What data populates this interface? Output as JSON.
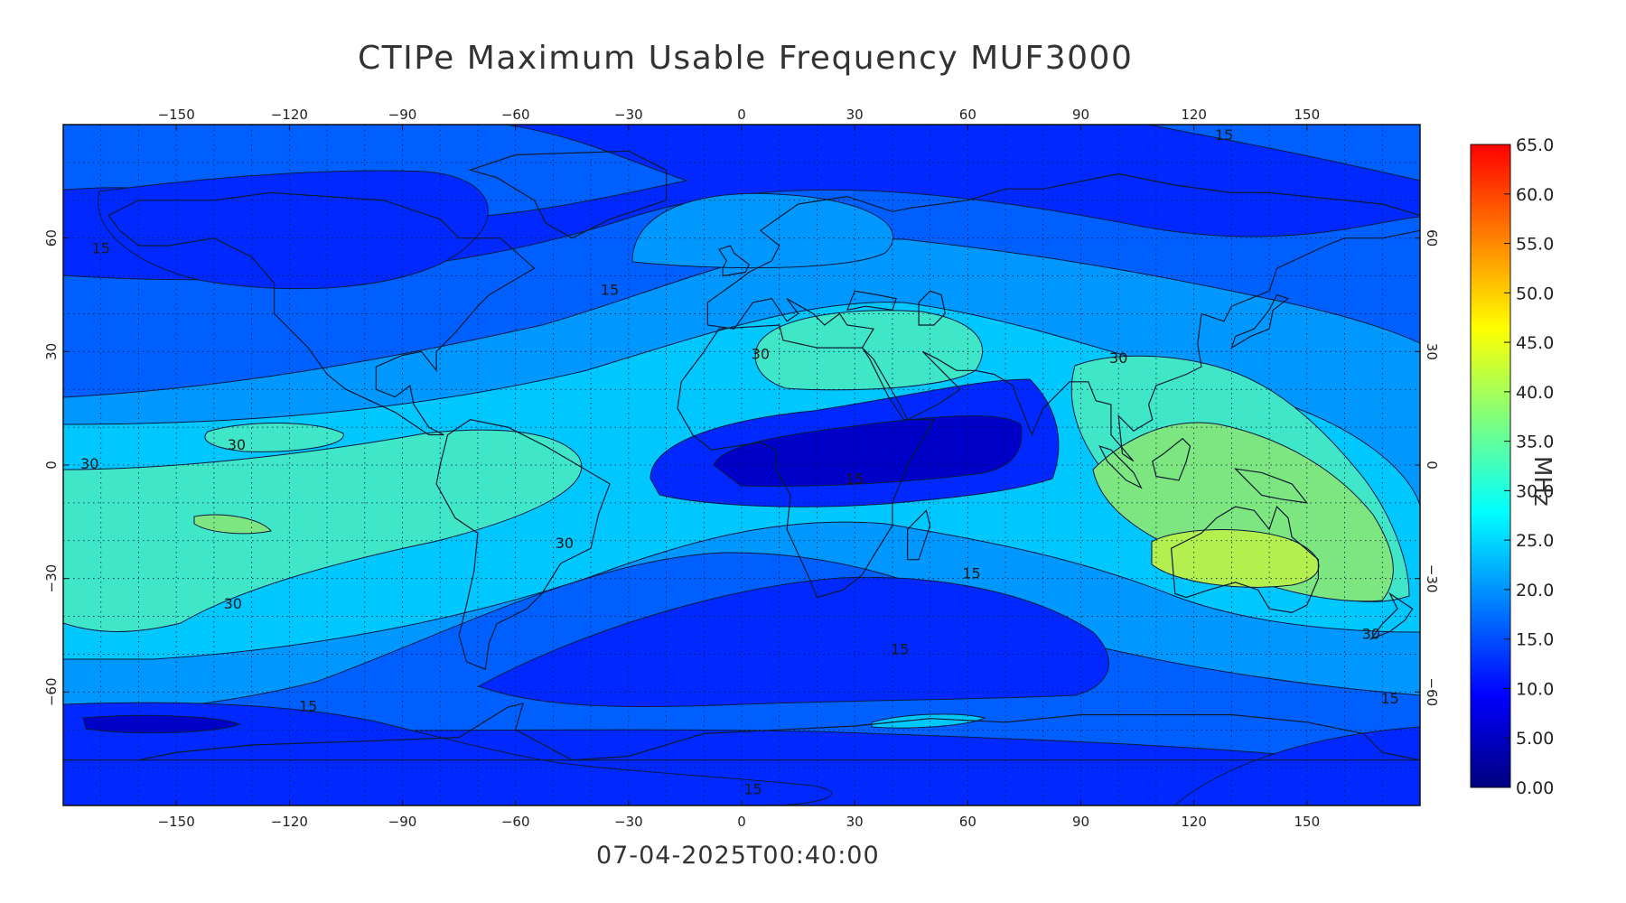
{
  "title": "CTIPe Maximum Usable Frequency MUF3000",
  "timestamp": "07-04-2025T00:40:00",
  "map": {
    "lon_ticks": [
      -150,
      -120,
      -90,
      -60,
      -30,
      0,
      30,
      60,
      90,
      120,
      150
    ],
    "lat_ticks": [
      -60,
      -30,
      0,
      30,
      60
    ],
    "lon_range": [
      -180,
      180
    ],
    "lat_range": [
      -90,
      90
    ],
    "grid": true,
    "contour_labels": [
      {
        "text": "15",
        "lon": -170,
        "lat": 56
      },
      {
        "text": "15",
        "lon": -35,
        "lat": 45
      },
      {
        "text": "15",
        "lon": 128,
        "lat": 86
      },
      {
        "text": "30",
        "lon": 5,
        "lat": 28
      },
      {
        "text": "30",
        "lon": 100,
        "lat": 27
      },
      {
        "text": "30",
        "lon": -134,
        "lat": 4
      },
      {
        "text": "30",
        "lon": -173,
        "lat": -1
      },
      {
        "text": "15",
        "lon": 30,
        "lat": -5
      },
      {
        "text": "30",
        "lon": -47,
        "lat": -22
      },
      {
        "text": "30",
        "lon": -135,
        "lat": -38
      },
      {
        "text": "15",
        "lon": 61,
        "lat": -30
      },
      {
        "text": "15",
        "lon": 42,
        "lat": -50
      },
      {
        "text": "15",
        "lon": -115,
        "lat": -65
      },
      {
        "text": "30",
        "lon": 167,
        "lat": -46
      },
      {
        "text": "15",
        "lon": 172,
        "lat": -63
      },
      {
        "text": "15",
        "lon": 3,
        "lat": -87
      }
    ]
  },
  "colorbar": {
    "units": "MHz",
    "min": 0,
    "max": 65,
    "tick_labels": [
      "0.00",
      "5.00",
      "10.0",
      "15.0",
      "20.0",
      "25.0",
      "30.0",
      "35.0",
      "40.0",
      "45.0",
      "50.0",
      "55.0",
      "60.0",
      "65.0"
    ],
    "colors": [
      "#00007f",
      "#0000ff",
      "#007fff",
      "#00ffff",
      "#7fff7f",
      "#ffff00",
      "#ff7f00",
      "#ff0000"
    ]
  },
  "contour_colors": {
    "c5": "#0000c8",
    "c10": "#0028ff",
    "c15": "#0060ff",
    "c20": "#0098ff",
    "c25": "#00c8ff",
    "c30": "#3fe6c8",
    "c35": "#7ee680",
    "c40": "#b4ef50"
  },
  "coastline_color": "#0c1a30"
}
